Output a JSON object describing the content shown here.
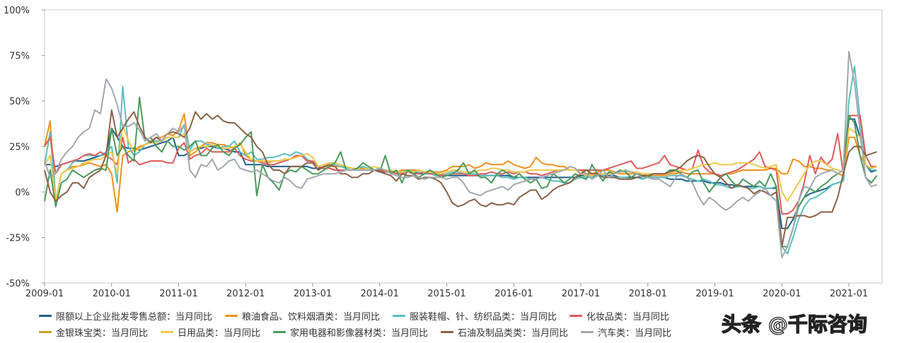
{
  "chart_data": {
    "type": "line",
    "x_start": "2009-01",
    "x_end": "2021-06",
    "x_ticks": [
      "2009-01",
      "2010-01",
      "2011-01",
      "2012-01",
      "2013-01",
      "2014-01",
      "2015-01",
      "2016-01",
      "2017-01",
      "2018-01",
      "2019-01",
      "2020-01",
      "2021-01"
    ],
    "y_ticks": [
      "100%",
      "75%",
      "50%",
      "25%",
      "0%",
      "-25%",
      "-50%"
    ],
    "ylim": [
      -50,
      100
    ],
    "y_unit": "%",
    "grid": false,
    "legend_placement": "bottom",
    "series": [
      {
        "name": "限额以上企业批发零售总额：当月同比",
        "color": "#1f5f8b",
        "values": [
          15,
          15,
          14,
          15,
          16,
          17,
          17,
          17,
          18,
          19,
          20,
          21,
          35,
          30,
          25,
          24,
          24,
          23,
          24,
          25,
          26,
          27,
          28,
          30,
          20,
          20,
          22,
          24,
          24,
          25,
          25,
          24,
          24,
          23,
          22,
          22,
          15,
          15,
          15,
          15,
          14,
          14,
          14,
          14,
          14,
          14,
          14,
          14,
          13,
          13,
          13,
          13,
          12,
          12,
          12,
          12,
          12,
          12,
          12,
          12,
          11,
          11,
          11,
          11,
          11,
          11,
          11,
          10,
          10,
          10,
          10,
          10,
          9,
          9,
          9,
          9,
          9,
          9,
          9,
          9,
          9,
          9,
          9,
          9,
          8,
          8,
          8,
          8,
          8,
          8,
          8,
          8,
          8,
          8,
          8,
          8,
          9,
          9,
          9,
          9,
          9,
          9,
          9,
          8,
          8,
          8,
          8,
          8,
          8,
          8,
          8,
          8,
          7,
          7,
          7,
          6,
          6,
          6,
          6,
          5,
          5,
          5,
          4,
          4,
          3,
          3,
          3,
          3,
          3,
          2,
          2,
          2,
          -20,
          -20,
          -15,
          -8,
          -3,
          -1,
          0,
          1,
          2,
          4,
          5,
          6,
          40,
          40,
          30,
          15,
          11,
          12
        ]
      },
      {
        "name": "粮油食品、饮料烟酒类：当月同比",
        "color": "#f0901e",
        "values": [
          25,
          39,
          -5,
          10,
          12,
          14,
          14,
          15,
          16,
          15,
          14,
          15,
          10,
          -11,
          20,
          22,
          23,
          25,
          26,
          28,
          30,
          30,
          32,
          31,
          34,
          43,
          20,
          22,
          25,
          27,
          27,
          26,
          26,
          25,
          24,
          27,
          20,
          18,
          17,
          17,
          16,
          17,
          17,
          18,
          18,
          19,
          20,
          18,
          16,
          12,
          14,
          14,
          14,
          14,
          14,
          13,
          13,
          13,
          12,
          12,
          12,
          12,
          11,
          11,
          12,
          12,
          12,
          12,
          11,
          11,
          11,
          11,
          12,
          14,
          14,
          14,
          15,
          13,
          14,
          16,
          15,
          15,
          15,
          17,
          15,
          14,
          13,
          14,
          19,
          16,
          15,
          15,
          14,
          14,
          12,
          12,
          12,
          10,
          10,
          11,
          12,
          12,
          11,
          10,
          10,
          10,
          10,
          10,
          9,
          9,
          9,
          9,
          10,
          10,
          11,
          10,
          10,
          10,
          10,
          10,
          10,
          9,
          10,
          10,
          11,
          12,
          12,
          12,
          12,
          12,
          13,
          13,
          10,
          10,
          18,
          17,
          14,
          14,
          13,
          13,
          12,
          12,
          10,
          9,
          30,
          30,
          20,
          15,
          13,
          14
        ]
      },
      {
        "name": "服装鞋帽、针、纺织品类：当月同比",
        "color": "#5bbfbf",
        "values": [
          15,
          33,
          -5,
          10,
          12,
          16,
          18,
          20,
          20,
          20,
          20,
          22,
          25,
          5,
          58,
          25,
          20,
          22,
          26,
          28,
          28,
          28,
          30,
          30,
          30,
          37,
          23,
          28,
          28,
          26,
          26,
          24,
          25,
          25,
          28,
          22,
          20,
          22,
          18,
          18,
          19,
          19,
          20,
          21,
          20,
          22,
          21,
          18,
          16,
          14,
          15,
          16,
          15,
          14,
          13,
          13,
          13,
          14,
          13,
          12,
          12,
          11,
          12,
          11,
          11,
          12,
          11,
          11,
          10,
          10,
          9,
          9,
          10,
          11,
          11,
          10,
          10,
          10,
          9,
          9,
          9,
          9,
          8,
          8,
          7,
          8,
          8,
          7,
          7,
          8,
          7,
          6,
          6,
          5,
          5,
          7,
          8,
          8,
          8,
          9,
          9,
          8,
          8,
          8,
          8,
          7,
          8,
          7,
          8,
          8,
          8,
          8,
          9,
          9,
          9,
          8,
          7,
          6,
          7,
          6,
          4,
          4,
          3,
          2,
          3,
          3,
          2,
          2,
          3,
          2,
          2,
          3,
          -30,
          -34,
          -25,
          -15,
          -8,
          -4,
          -3,
          -1,
          1,
          4,
          5,
          6,
          50,
          69,
          40,
          15,
          12,
          12
        ]
      },
      {
        "name": "化妆品类：当月同比",
        "color": "#e05a5a",
        "values": [
          25,
          30,
          10,
          15,
          16,
          17,
          18,
          20,
          21,
          20,
          22,
          20,
          18,
          15,
          30,
          16,
          18,
          15,
          16,
          17,
          17,
          17,
          16,
          16,
          24,
          27,
          18,
          20,
          21,
          24,
          22,
          22,
          22,
          22,
          24,
          20,
          18,
          17,
          17,
          16,
          15,
          15,
          16,
          17,
          18,
          20,
          20,
          17,
          17,
          14,
          13,
          13,
          12,
          12,
          12,
          12,
          12,
          12,
          12,
          12,
          12,
          11,
          11,
          10,
          10,
          11,
          10,
          10,
          11,
          10,
          10,
          9,
          9,
          10,
          10,
          10,
          9,
          9,
          10,
          10,
          11,
          10,
          10,
          11,
          10,
          11,
          11,
          10,
          10,
          9,
          10,
          11,
          12,
          12,
          12,
          12,
          12,
          12,
          12,
          12,
          12,
          13,
          14,
          15,
          16,
          17,
          13,
          13,
          14,
          15,
          16,
          20,
          15,
          14,
          13,
          12,
          13,
          23,
          14,
          11,
          10,
          9,
          10,
          11,
          12,
          14,
          16,
          18,
          22,
          14,
          13,
          12,
          -12,
          -12,
          -10,
          -5,
          5,
          20,
          10,
          19,
          15,
          18,
          32,
          10,
          42,
          42,
          42,
          20,
          14,
          14
        ]
      },
      {
        "name": "金银珠宝类：当月同比",
        "color": "#c9a227",
        "values": []
      },
      {
        "name": "日用品类：当月同比",
        "color": "#f0c84a",
        "values": [
          15,
          20,
          -5,
          10,
          12,
          13,
          14,
          16,
          17,
          18,
          18,
          20,
          22,
          10,
          37,
          28,
          22,
          24,
          26,
          27,
          27,
          28,
          30,
          30,
          30,
          32,
          22,
          24,
          25,
          25,
          26,
          25,
          24,
          24,
          25,
          26,
          22,
          18,
          17,
          17,
          17,
          17,
          17,
          18,
          18,
          19,
          20,
          21,
          19,
          14,
          15,
          16,
          16,
          15,
          14,
          13,
          13,
          12,
          13,
          14,
          13,
          12,
          12,
          11,
          11,
          11,
          11,
          12,
          11,
          11,
          10,
          10,
          11,
          12,
          12,
          11,
          11,
          11,
          12,
          12,
          13,
          13,
          12,
          12,
          11,
          11,
          11,
          12,
          12,
          12,
          12,
          12,
          12,
          12,
          12,
          12,
          10,
          9,
          9,
          10,
          10,
          10,
          10,
          11,
          11,
          11,
          11,
          10,
          10,
          10,
          10,
          10,
          11,
          11,
          12,
          12,
          13,
          14,
          15,
          15,
          16,
          15,
          15,
          15,
          16,
          16,
          16,
          15,
          14,
          13,
          14,
          15,
          0,
          -5,
          0,
          5,
          10,
          15,
          17,
          17,
          15,
          13,
          12,
          11,
          35,
          33,
          30,
          15,
          13,
          14
        ]
      },
      {
        "name": "家用电器和影像器材类：当月同比",
        "color": "#4a9a5a",
        "values": [
          -5,
          12,
          -8,
          5,
          7,
          12,
          10,
          8,
          10,
          12,
          13,
          12,
          35,
          20,
          25,
          20,
          17,
          52,
          28,
          30,
          25,
          22,
          28,
          25,
          25,
          23,
          25,
          28,
          20,
          20,
          24,
          26,
          22,
          20,
          24,
          26,
          30,
          33,
          -2,
          15,
          8,
          5,
          1,
          10,
          12,
          11,
          14,
          12,
          10,
          10,
          12,
          14,
          16,
          22,
          12,
          12,
          13,
          16,
          14,
          12,
          11,
          20,
          10,
          12,
          5,
          12,
          10,
          8,
          10,
          12,
          10,
          8,
          9,
          10,
          12,
          16,
          10,
          12,
          8,
          8,
          5,
          10,
          12,
          10,
          8,
          10,
          7,
          5,
          7,
          2,
          3,
          10,
          8,
          5,
          7,
          10,
          8,
          7,
          15,
          10,
          6,
          11,
          10,
          12,
          11,
          8,
          10,
          9,
          8,
          10,
          10,
          10,
          12,
          12,
          10,
          8,
          11,
          12,
          5,
          0,
          4,
          8,
          10,
          6,
          3,
          7,
          5,
          3,
          6,
          3,
          10,
          3,
          -30,
          -30,
          -20,
          -8,
          -3,
          2,
          0,
          3,
          5,
          8,
          10,
          12,
          42,
          38,
          20,
          8,
          5,
          9
        ]
      },
      {
        "name": "石油及制品类类：当月同比",
        "color": "#8b6147",
        "values": [
          12,
          0,
          -5,
          -2,
          0,
          5,
          5,
          2,
          8,
          10,
          12,
          20,
          45,
          30,
          35,
          40,
          44,
          36,
          30,
          27,
          30,
          28,
          32,
          33,
          32,
          30,
          35,
          44,
          40,
          43,
          40,
          42,
          39,
          38,
          38,
          35,
          32,
          30,
          25,
          22,
          15,
          12,
          12,
          10,
          14,
          14,
          14,
          16,
          16,
          12,
          14,
          15,
          14,
          10,
          10,
          8,
          8,
          10,
          10,
          12,
          11,
          10,
          9,
          6,
          10,
          9,
          9,
          7,
          8,
          8,
          7,
          5,
          0,
          -6,
          -8,
          -7,
          -5,
          -4,
          -7,
          -8,
          -6,
          -7,
          -7,
          -6,
          -7,
          -3,
          -1,
          1,
          1,
          -4,
          -2,
          1,
          3,
          4,
          5,
          8,
          10,
          12,
          10,
          10,
          8,
          8,
          8,
          7,
          7,
          7,
          8,
          9,
          9,
          10,
          10,
          10,
          11,
          12,
          14,
          17,
          19,
          20,
          19,
          14,
          10,
          8,
          5,
          2,
          4,
          3,
          2,
          -1,
          1,
          0,
          -2,
          0,
          -30,
          -14,
          -14,
          -13,
          -13,
          -14,
          -13,
          -11,
          -11,
          -11,
          -3,
          10,
          22,
          25,
          25,
          20,
          21,
          22
        ]
      },
      {
        "name": "汽车类：当月同比",
        "color": "#a0a8b0",
        "values": [
          17,
          8,
          10,
          18,
          22,
          25,
          30,
          33,
          35,
          45,
          43,
          62,
          57,
          48,
          36,
          36,
          38,
          34,
          28,
          30,
          32,
          28,
          32,
          35,
          33,
          37,
          12,
          8,
          15,
          14,
          18,
          12,
          14,
          17,
          18,
          13,
          12,
          11,
          12,
          10,
          8,
          6,
          5,
          8,
          6,
          3,
          2,
          7,
          8,
          9,
          10,
          10,
          10,
          11,
          12,
          12,
          12,
          12,
          12,
          12,
          13,
          12,
          10,
          9,
          8,
          8,
          9,
          8,
          7,
          8,
          8,
          8,
          7,
          8,
          8,
          5,
          0,
          -1,
          -2,
          0,
          1,
          2,
          3,
          1,
          4,
          5,
          6,
          7,
          7,
          8,
          9,
          10,
          11,
          12,
          14,
          13,
          10,
          10,
          7,
          9,
          12,
          8,
          10,
          11,
          12,
          11,
          10,
          8,
          8,
          7,
          7,
          5,
          3,
          8,
          10,
          8,
          5,
          -2,
          -7,
          -3,
          -5,
          -8,
          -10,
          -8,
          -5,
          -3,
          -5,
          -2,
          0,
          2,
          -2,
          -5,
          -36,
          -30,
          -20,
          -5,
          3,
          2,
          8,
          10,
          11,
          12,
          10,
          12,
          77,
          60,
          33,
          8,
          3,
          4
        ]
      }
    ]
  },
  "watermark": "头条 @千际咨询"
}
